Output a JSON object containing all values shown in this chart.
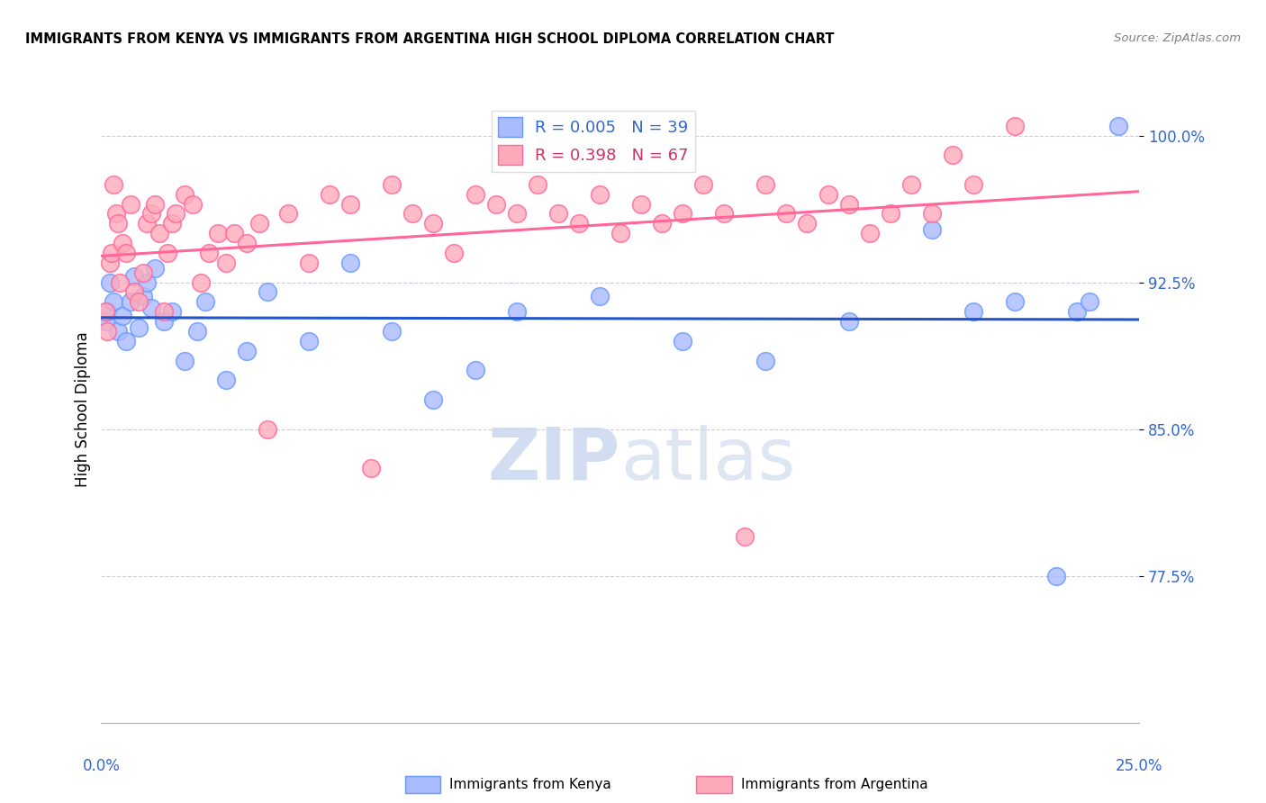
{
  "title": "IMMIGRANTS FROM KENYA VS IMMIGRANTS FROM ARGENTINA HIGH SCHOOL DIPLOMA CORRELATION CHART",
  "source": "Source: ZipAtlas.com",
  "ylabel": "High School Diploma",
  "xlim": [
    0.0,
    25.0
  ],
  "ylim": [
    70.0,
    102.0
  ],
  "yticks": [
    77.5,
    85.0,
    92.5,
    100.0
  ],
  "ytick_labels": [
    "77.5%",
    "85.0%",
    "92.5%",
    "100.0%"
  ],
  "kenya_color": "#6699ff",
  "kenya_color_fill": "#aabbff",
  "argentina_color": "#ff6699",
  "argentina_color_fill": "#ffaabb",
  "kenya_R": 0.005,
  "kenya_N": 39,
  "argentina_R": 0.398,
  "argentina_N": 67,
  "legend_label_kenya": "Immigrants from Kenya",
  "legend_label_argentina": "Immigrants from Argentina",
  "kenya_x": [
    0.1,
    0.15,
    0.2,
    0.3,
    0.4,
    0.5,
    0.6,
    0.7,
    0.8,
    0.9,
    1.0,
    1.1,
    1.2,
    1.3,
    1.5,
    1.7,
    2.0,
    2.3,
    2.5,
    3.0,
    3.5,
    4.0,
    5.0,
    6.0,
    7.0,
    8.0,
    9.0,
    10.0,
    12.0,
    14.0,
    16.0,
    18.0,
    20.0,
    21.0,
    22.0,
    23.0,
    23.5,
    23.8,
    24.5
  ],
  "kenya_y": [
    90.5,
    91.0,
    92.5,
    91.5,
    90.0,
    90.8,
    89.5,
    91.5,
    92.8,
    90.2,
    91.8,
    92.5,
    91.2,
    93.2,
    90.5,
    91.0,
    88.5,
    90.0,
    91.5,
    87.5,
    89.0,
    92.0,
    89.5,
    93.5,
    90.0,
    86.5,
    88.0,
    91.0,
    91.8,
    89.5,
    88.5,
    90.5,
    95.2,
    91.0,
    91.5,
    77.5,
    91.0,
    91.5,
    100.5
  ],
  "argentina_x": [
    0.1,
    0.15,
    0.2,
    0.25,
    0.3,
    0.35,
    0.4,
    0.45,
    0.5,
    0.6,
    0.7,
    0.8,
    0.9,
    1.0,
    1.1,
    1.2,
    1.3,
    1.4,
    1.5,
    1.6,
    1.7,
    1.8,
    2.0,
    2.2,
    2.4,
    2.6,
    2.8,
    3.0,
    3.2,
    3.5,
    3.8,
    4.0,
    4.5,
    5.0,
    5.5,
    6.0,
    6.5,
    7.0,
    7.5,
    8.0,
    8.5,
    9.0,
    9.5,
    10.0,
    10.5,
    11.0,
    11.5,
    12.0,
    12.5,
    13.0,
    13.5,
    14.0,
    14.5,
    15.0,
    15.5,
    16.0,
    16.5,
    17.0,
    17.5,
    18.0,
    18.5,
    19.0,
    19.5,
    20.0,
    20.5,
    21.0,
    22.0
  ],
  "argentina_y": [
    91.0,
    90.0,
    93.5,
    94.0,
    97.5,
    96.0,
    95.5,
    92.5,
    94.5,
    94.0,
    96.5,
    92.0,
    91.5,
    93.0,
    95.5,
    96.0,
    96.5,
    95.0,
    91.0,
    94.0,
    95.5,
    96.0,
    97.0,
    96.5,
    92.5,
    94.0,
    95.0,
    93.5,
    95.0,
    94.5,
    95.5,
    85.0,
    96.0,
    93.5,
    97.0,
    96.5,
    83.0,
    97.5,
    96.0,
    95.5,
    94.0,
    97.0,
    96.5,
    96.0,
    97.5,
    96.0,
    95.5,
    97.0,
    95.0,
    96.5,
    95.5,
    96.0,
    97.5,
    96.0,
    79.5,
    97.5,
    96.0,
    95.5,
    97.0,
    96.5,
    95.0,
    96.0,
    97.5,
    96.0,
    99.0,
    97.5,
    100.5
  ]
}
